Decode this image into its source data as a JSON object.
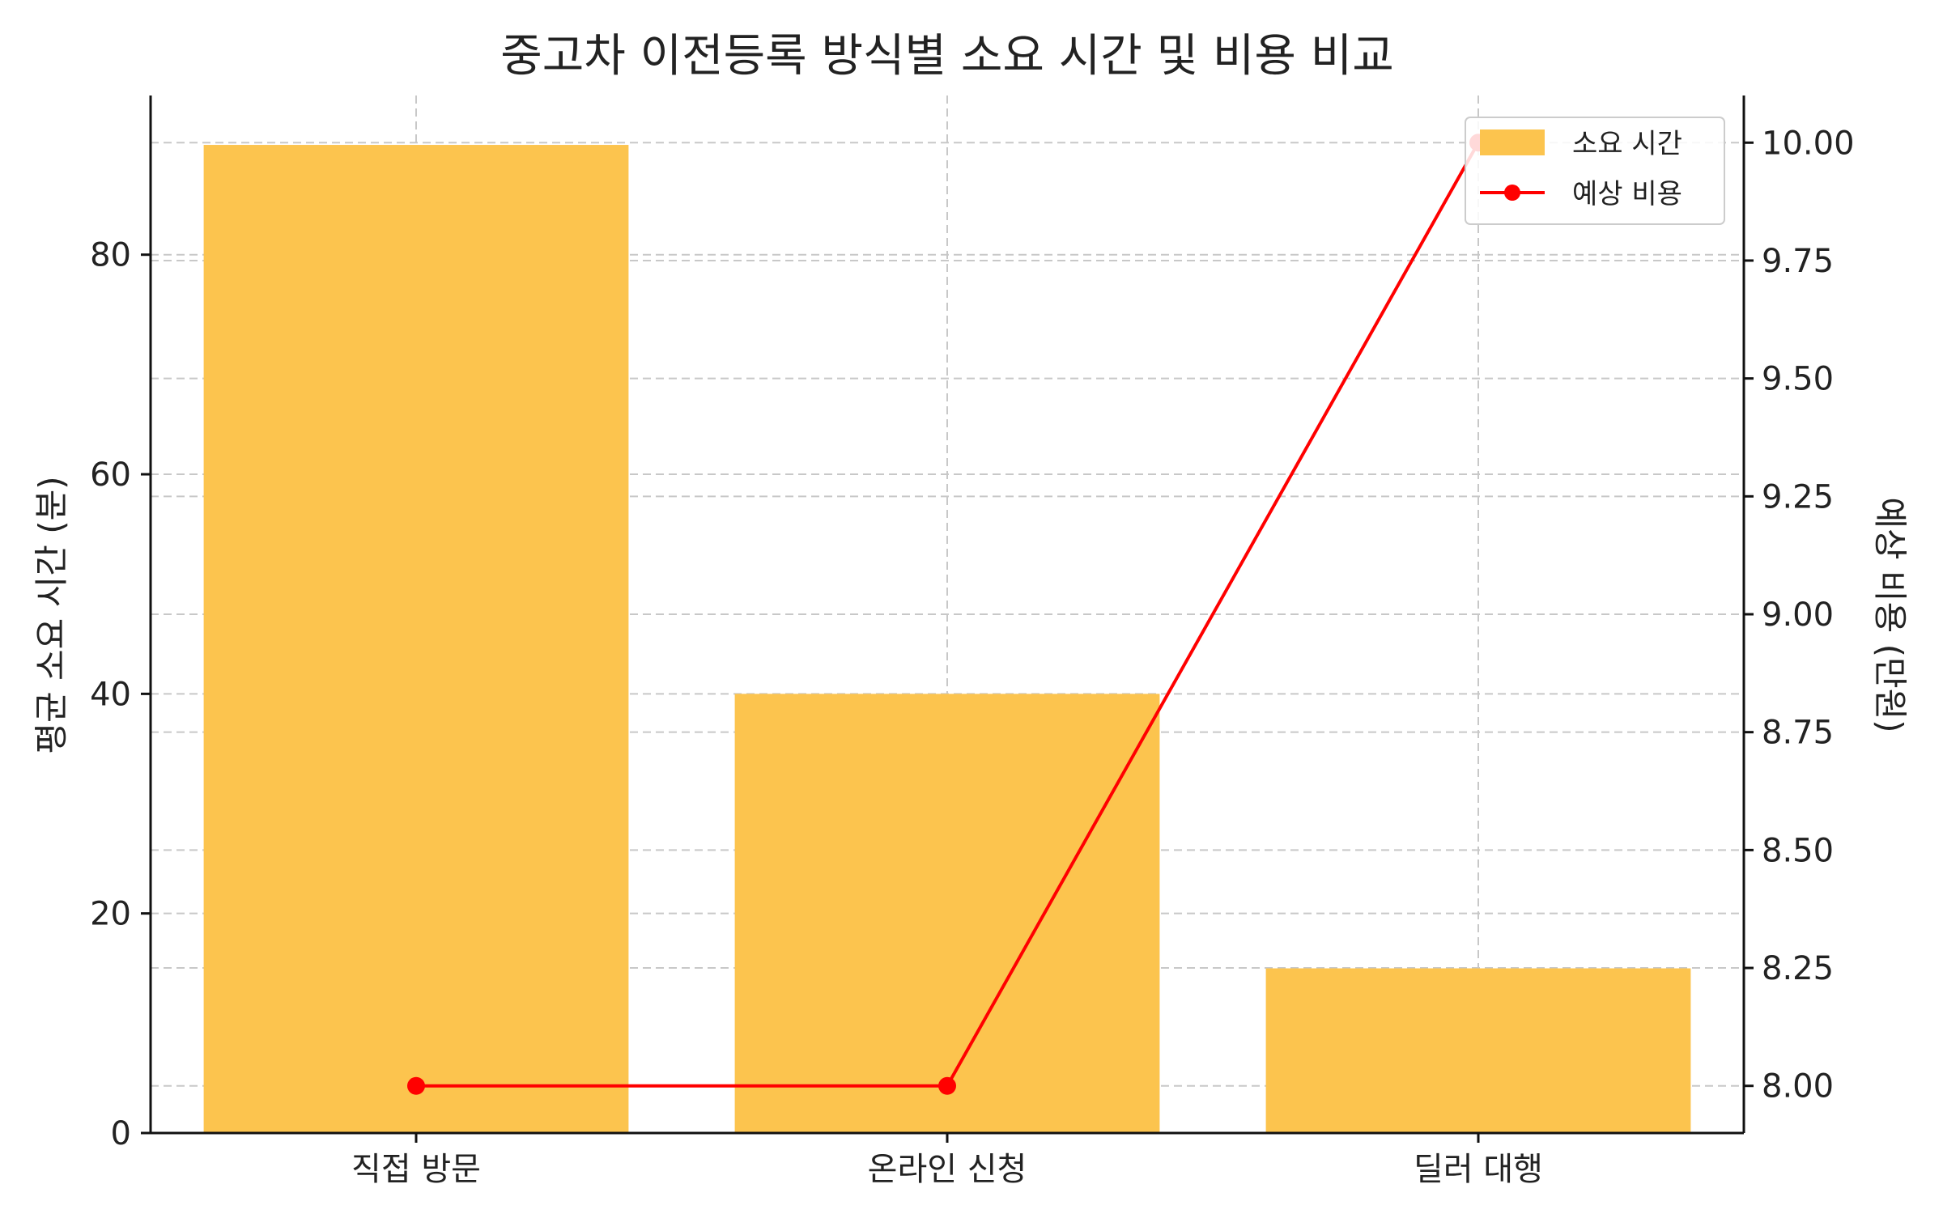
{
  "chart_data": {
    "type": "bar",
    "title": "중고차 이전등록 방식별 소요 시간 및 비용 비교",
    "xlabel": "",
    "categories": [
      "직접 방문",
      "온라인 신청",
      "딜러 대행"
    ],
    "series": [
      {
        "name": "소요 시간",
        "type": "bar",
        "axis": "left",
        "color": "#FCC44E",
        "values": [
          90,
          40,
          15
        ]
      },
      {
        "name": "예상 비용",
        "type": "line",
        "axis": "right",
        "color": "#FF0000",
        "marker": "circle",
        "values": [
          8.0,
          8.0,
          10.0
        ]
      }
    ],
    "y_left": {
      "label": "평균 소요 시간 (분)",
      "ylim": [
        0,
        94.5
      ],
      "ticks": [
        0,
        20,
        40,
        60,
        80
      ]
    },
    "y_right": {
      "label": "예상 비용 (만원)",
      "ylim": [
        7.9,
        10.1
      ],
      "ticks": [
        "8.00",
        "8.25",
        "8.50",
        "8.75",
        "9.00",
        "9.25",
        "9.50",
        "9.75",
        "10.00"
      ]
    },
    "grid": true,
    "grid_style": "dashed",
    "legend_position": "top-right"
  }
}
